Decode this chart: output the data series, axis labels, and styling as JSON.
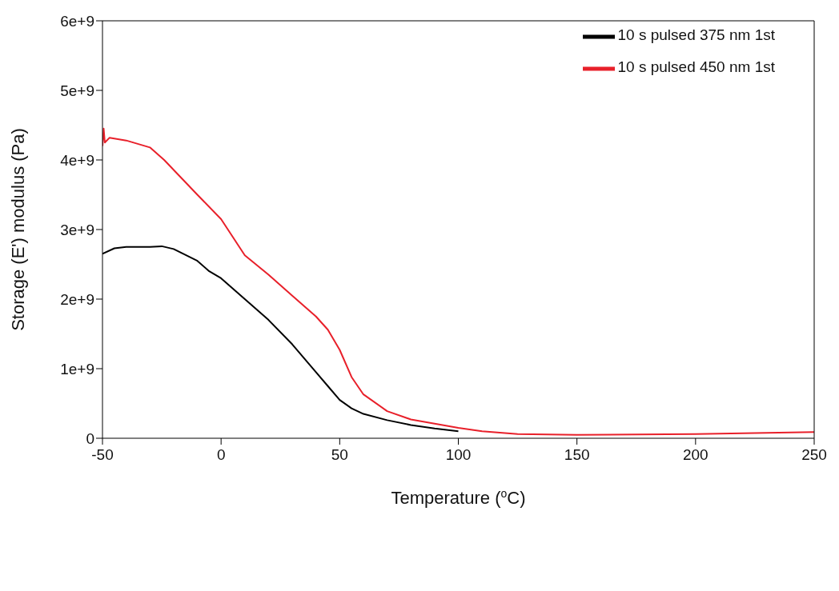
{
  "chart_data": {
    "type": "line",
    "xlabel": "Temperature ($^{o}$C)",
    "ylabel": "Storage (E') modulus (Pa)",
    "xlim": [
      -50,
      250
    ],
    "xticks": [
      -50,
      0,
      50,
      100,
      150,
      200,
      250
    ],
    "ylim": [
      0,
      6000000000
    ],
    "yticks": [
      0,
      {
        "value": 1000000000,
        "label": "1e+9"
      },
      {
        "value": 2000000000,
        "label": "2e+9"
      },
      {
        "value": 3000000000,
        "label": "3e+9"
      },
      {
        "value": 4000000000,
        "label": "4e+9"
      },
      {
        "value": 5000000000,
        "label": "5e+9"
      },
      {
        "value": 6000000000,
        "label": "6e+9"
      }
    ],
    "grid": false,
    "legend": "top right",
    "marker": "none",
    "line_style": "solid",
    "series": [
      {
        "name": "10 s pulsed 375 nm 1st",
        "color": "#000000",
        "x": [
          -50,
          -45,
          -40,
          -30,
          -25,
          -20,
          -10,
          -5,
          0,
          10,
          20,
          30,
          40,
          45,
          50,
          55,
          60,
          70,
          80,
          90,
          100
        ],
        "values": [
          2650000000,
          2730000000,
          2750000000,
          2750000000,
          2760000000,
          2720000000,
          2550000000,
          2400000000,
          2300000000,
          2000000000,
          1700000000,
          1350000000,
          950000000,
          750000000,
          550000000,
          430000000,
          350000000,
          260000000,
          190000000,
          140000000,
          100000000
        ]
      },
      {
        "name": "10 s pulsed 450 nm 1st",
        "color": "#e8202a",
        "x": [
          -50,
          -49.5,
          -49,
          -47,
          -40,
          -30,
          -24,
          -10,
          0,
          10,
          20,
          30,
          40,
          45,
          50,
          55,
          60,
          70,
          80,
          90,
          100,
          110,
          125,
          150,
          200,
          250
        ],
        "values": [
          4200000000,
          4450000000,
          4250000000,
          4320000000,
          4280000000,
          4180000000,
          4000000000,
          3500000000,
          3150000000,
          2630000000,
          2350000000,
          2050000000,
          1750000000,
          1560000000,
          1270000000,
          880000000,
          630000000,
          390000000,
          270000000,
          210000000,
          150000000,
          100000000,
          60000000,
          50000000,
          60000000,
          90000000
        ]
      }
    ]
  }
}
